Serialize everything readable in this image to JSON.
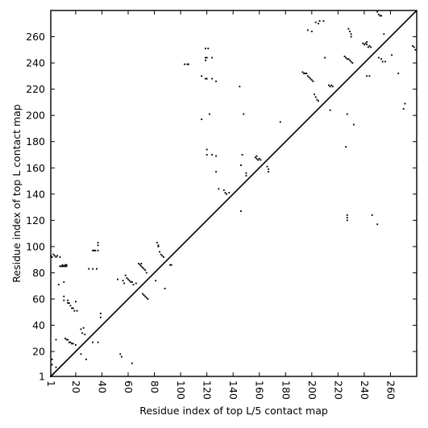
{
  "chart_data": {
    "type": "scatter",
    "xlabel": "Residue index of top L/5 contact map",
    "ylabel": "Residue index of top L contact map",
    "xlim": [
      1,
      280
    ],
    "ylim": [
      1,
      280
    ],
    "x_ticks": [
      1,
      20,
      40,
      60,
      80,
      100,
      120,
      140,
      160,
      180,
      200,
      220,
      240,
      260
    ],
    "y_ticks": [
      1,
      20,
      40,
      60,
      80,
      100,
      120,
      140,
      160,
      180,
      200,
      220,
      240,
      260
    ],
    "diagonal": true,
    "grid": false,
    "point_color": "#000000",
    "upper_triangle_points": [
      [
        1,
        1
      ],
      [
        2,
        2
      ],
      [
        3,
        3
      ],
      [
        8,
        85
      ],
      [
        9,
        85
      ],
      [
        10,
        85
      ],
      [
        11,
        85
      ],
      [
        12,
        85
      ],
      [
        13,
        85
      ],
      [
        7,
        71
      ],
      [
        33,
        97
      ],
      [
        34,
        97
      ],
      [
        35,
        97
      ],
      [
        37,
        101
      ],
      [
        37,
        103
      ],
      [
        37,
        97
      ],
      [
        30,
        83
      ],
      [
        33,
        83
      ],
      [
        36,
        83
      ],
      [
        82,
        103
      ],
      [
        83,
        100
      ],
      [
        84,
        96
      ],
      [
        85,
        94
      ],
      [
        86,
        93
      ],
      [
        87,
        92
      ],
      [
        92,
        86
      ],
      [
        93,
        86
      ],
      [
        88,
        68
      ],
      [
        81,
        74
      ],
      [
        83,
        101
      ],
      [
        103,
        239
      ],
      [
        105,
        239
      ],
      [
        106,
        239
      ],
      [
        119,
        251
      ],
      [
        121,
        251
      ],
      [
        119,
        244
      ],
      [
        119,
        242
      ],
      [
        120,
        244
      ],
      [
        124,
        244
      ],
      [
        119,
        228
      ],
      [
        120,
        228
      ],
      [
        116,
        230
      ],
      [
        124,
        228
      ],
      [
        127,
        226
      ],
      [
        122,
        201
      ],
      [
        116,
        197
      ],
      [
        120,
        174
      ],
      [
        120,
        170
      ],
      [
        124,
        170
      ],
      [
        127,
        169
      ],
      [
        127,
        157
      ],
      [
        129,
        144
      ],
      [
        133,
        143
      ],
      [
        134,
        141
      ],
      [
        137,
        141
      ],
      [
        135,
        140
      ],
      [
        145,
        222
      ],
      [
        148,
        201
      ],
      [
        147,
        170
      ],
      [
        150,
        156
      ],
      [
        150,
        154
      ],
      [
        146,
        127
      ],
      [
        157,
        168
      ],
      [
        158,
        167
      ],
      [
        159,
        166
      ],
      [
        160,
        167
      ],
      [
        161,
        166
      ],
      [
        158,
        169
      ],
      [
        166,
        161
      ],
      [
        167,
        159
      ],
      [
        167,
        157
      ],
      [
        176,
        195
      ],
      [
        193,
        233
      ],
      [
        194,
        232
      ],
      [
        195,
        232
      ],
      [
        196,
        232
      ],
      [
        197,
        230
      ],
      [
        198,
        229
      ],
      [
        199,
        228
      ],
      [
        200,
        227
      ],
      [
        201,
        226
      ],
      [
        197,
        265
      ],
      [
        200,
        264
      ],
      [
        203,
        271
      ],
      [
        205,
        270
      ],
      [
        206,
        272
      ],
      [
        209,
        272
      ],
      [
        210,
        244
      ],
      [
        202,
        216
      ],
      [
        203,
        214
      ],
      [
        204,
        212
      ],
      [
        205,
        211
      ],
      [
        213,
        223
      ],
      [
        214,
        222
      ],
      [
        215,
        223
      ],
      [
        216,
        222
      ],
      [
        214,
        204
      ],
      [
        225,
        245
      ],
      [
        226,
        244
      ],
      [
        227,
        243
      ],
      [
        228,
        243
      ],
      [
        229,
        242
      ],
      [
        230,
        241
      ],
      [
        231,
        240
      ],
      [
        228,
        266
      ],
      [
        229,
        264
      ],
      [
        230,
        262
      ],
      [
        230,
        260
      ],
      [
        239,
        255
      ],
      [
        240,
        254
      ],
      [
        241,
        255
      ],
      [
        242,
        254
      ],
      [
        243,
        252
      ],
      [
        244,
        253
      ],
      [
        245,
        252
      ],
      [
        242,
        256
      ],
      [
        242,
        230
      ],
      [
        244,
        230
      ],
      [
        250,
        279
      ],
      [
        251,
        277
      ],
      [
        252,
        276
      ],
      [
        253,
        276
      ],
      [
        251,
        244
      ],
      [
        253,
        243
      ],
      [
        254,
        241
      ],
      [
        256,
        241
      ],
      [
        255,
        262
      ],
      [
        261,
        246
      ],
      [
        266,
        232
      ],
      [
        270,
        205
      ],
      [
        271,
        209
      ],
      [
        277,
        253
      ],
      [
        278,
        252
      ],
      [
        279,
        250
      ]
    ],
    "lower_triangle_points": [
      [
        1,
        93
      ],
      [
        2,
        92
      ],
      [
        3,
        94
      ],
      [
        4,
        93
      ],
      [
        5,
        92
      ],
      [
        6,
        93
      ],
      [
        10,
        86
      ],
      [
        12,
        86
      ],
      [
        13,
        86
      ],
      [
        8,
        92
      ],
      [
        11,
        73
      ],
      [
        11,
        62
      ],
      [
        11,
        59
      ],
      [
        14,
        59
      ],
      [
        14,
        57
      ],
      [
        15,
        57
      ],
      [
        16,
        55
      ],
      [
        17,
        53
      ],
      [
        18,
        53
      ],
      [
        19,
        51
      ],
      [
        20,
        58
      ],
      [
        21,
        51
      ],
      [
        5,
        29
      ],
      [
        12,
        30
      ],
      [
        13,
        29
      ],
      [
        14,
        29
      ],
      [
        15,
        27
      ],
      [
        16,
        27
      ],
      [
        17,
        26
      ],
      [
        18,
        26
      ],
      [
        20,
        25
      ],
      [
        24,
        37
      ],
      [
        25,
        34
      ],
      [
        26,
        38
      ],
      [
        27,
        33
      ],
      [
        28,
        14
      ],
      [
        24,
        18
      ],
      [
        33,
        27
      ],
      [
        37,
        27
      ],
      [
        39,
        49
      ],
      [
        39,
        46
      ],
      [
        52,
        75
      ],
      [
        54,
        18
      ],
      [
        55,
        16
      ],
      [
        56,
        74
      ],
      [
        57,
        72
      ],
      [
        58,
        78
      ],
      [
        59,
        76
      ],
      [
        60,
        75
      ],
      [
        61,
        74
      ],
      [
        62,
        73
      ],
      [
        63,
        73
      ],
      [
        64,
        71
      ],
      [
        63,
        11
      ],
      [
        66,
        72
      ],
      [
        68,
        87
      ],
      [
        69,
        86
      ],
      [
        70,
        87
      ],
      [
        70,
        85
      ],
      [
        71,
        84
      ],
      [
        72,
        83
      ],
      [
        73,
        82
      ],
      [
        74,
        80
      ],
      [
        71,
        64
      ],
      [
        72,
        63
      ],
      [
        73,
        62
      ],
      [
        74,
        61
      ],
      [
        75,
        60
      ],
      [
        2,
        14
      ],
      [
        2,
        10
      ],
      [
        5,
        8
      ],
      [
        146,
        162
      ],
      [
        246,
        124
      ],
      [
        227,
        124
      ],
      [
        227,
        122
      ],
      [
        227,
        120
      ],
      [
        232,
        193
      ],
      [
        227,
        201
      ],
      [
        226,
        176
      ],
      [
        250,
        117
      ]
    ]
  }
}
